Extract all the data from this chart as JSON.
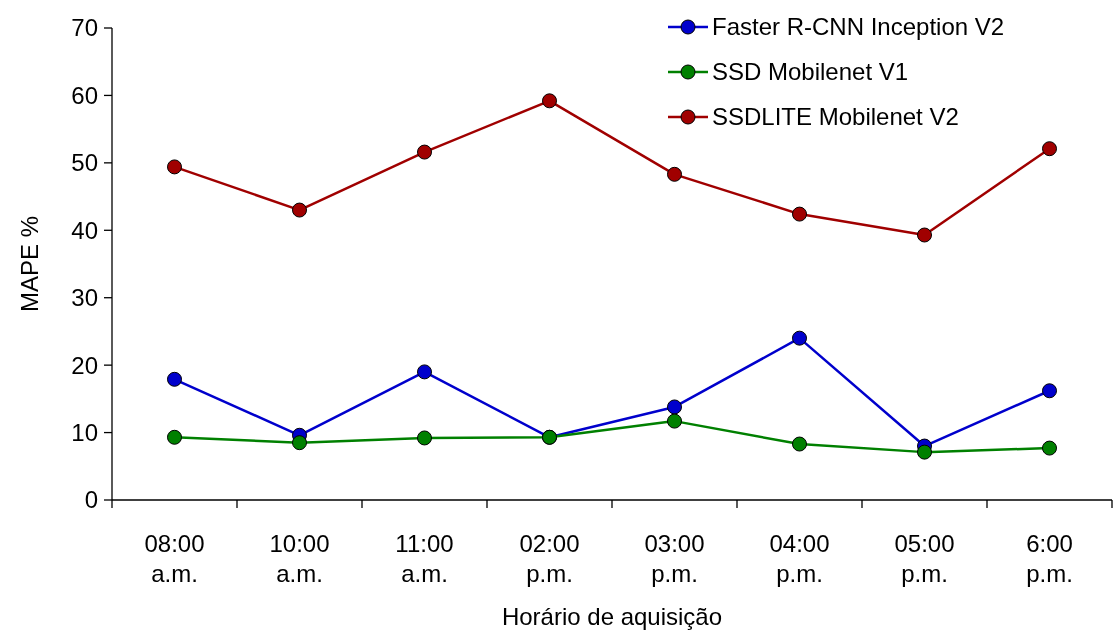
{
  "chart_data": {
    "type": "line",
    "xlabel": "Horário de aquisição",
    "ylabel": "MAPE %",
    "categories": [
      "08:00 a.m.",
      "10:00 a.m.",
      "11:00 a.m.",
      "02:00 p.m.",
      "03:00 p.m.",
      "04:00 p.m.",
      "05:00 p.m.",
      "6:00 p.m."
    ],
    "series": [
      {
        "name": "Faster R-CNN Inception V2",
        "color": "#0000cc",
        "values": [
          17.9,
          9.6,
          19.0,
          9.3,
          13.8,
          24.0,
          8.0,
          16.2
        ]
      },
      {
        "name": "SSD Mobilenet V1",
        "color": "#008000",
        "values": [
          9.3,
          8.5,
          9.2,
          9.3,
          11.7,
          8.3,
          7.1,
          7.7
        ]
      },
      {
        "name": "SSDLITE Mobilenet V2",
        "color": "#a00000",
        "values": [
          49.4,
          43.0,
          51.6,
          59.2,
          48.3,
          42.4,
          39.3,
          52.1
        ]
      }
    ],
    "ylim": [
      0,
      70
    ],
    "yticks": [
      0,
      10,
      20,
      30,
      40,
      50,
      60,
      70
    ],
    "grid": false,
    "legend": "top right",
    "marker": "circle",
    "line_style": "solid"
  }
}
